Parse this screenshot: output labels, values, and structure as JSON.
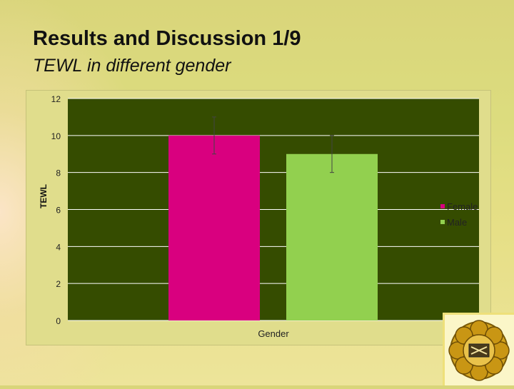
{
  "slide": {
    "title": "Results and Discussion 1/9",
    "subtitle": "TEWL in different gender"
  },
  "colors": {
    "plot_background": "#354c00",
    "female": "#d9007f",
    "male": "#92d04f",
    "gridline": "#ffffff"
  },
  "chart_data": {
    "type": "bar",
    "categories": [
      "Gender"
    ],
    "series": [
      {
        "name": "Female",
        "values": [
          10
        ],
        "error": [
          1.0
        ],
        "color": "#d9007f"
      },
      {
        "name": "Male",
        "values": [
          9
        ],
        "error": [
          1.0
        ],
        "color": "#92d04f"
      }
    ],
    "title": "",
    "xlabel": "Gender",
    "ylabel": "TEWL",
    "ylim": [
      0,
      12
    ],
    "yticks": [
      0,
      2,
      4,
      6,
      8,
      10,
      12
    ],
    "grid": true,
    "legend_position": "right"
  }
}
